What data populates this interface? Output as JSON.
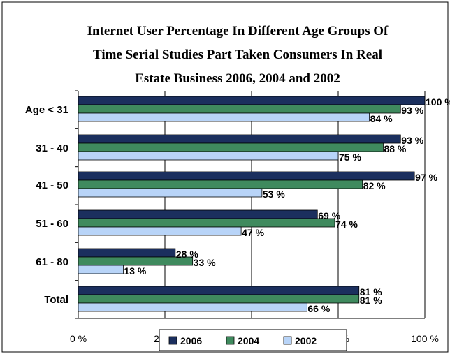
{
  "chart_data": {
    "type": "bar",
    "orientation": "horizontal",
    "title_lines": [
      "Internet User Percentage In Different Age Groups Of",
      "Time  Serial Studies Part Taken Consumers In Real",
      "Estate Business 2006, 2004 and 2002"
    ],
    "categories": [
      "Age < 31",
      "31 - 40",
      "41 - 50",
      "51 - 60",
      "61 - 80",
      "Total"
    ],
    "series": [
      {
        "name": "2006",
        "color": "#1b2f5e",
        "values": [
          100,
          93,
          97,
          69,
          28,
          81
        ]
      },
      {
        "name": "2004",
        "color": "#3f8a5e",
        "values": [
          93,
          88,
          82,
          74,
          33,
          81
        ]
      },
      {
        "name": "2002",
        "color": "#b8d4f8",
        "values": [
          84,
          75,
          53,
          47,
          13,
          66
        ]
      }
    ],
    "value_suffix": " %",
    "xlim": [
      0,
      100
    ],
    "x_ticks": [
      0,
      25,
      50,
      75,
      100
    ],
    "x_tick_labels": [
      "0 %",
      "25 %",
      "50 %",
      "75 %",
      "100 %"
    ],
    "grid": true,
    "legend_position": "bottom"
  }
}
